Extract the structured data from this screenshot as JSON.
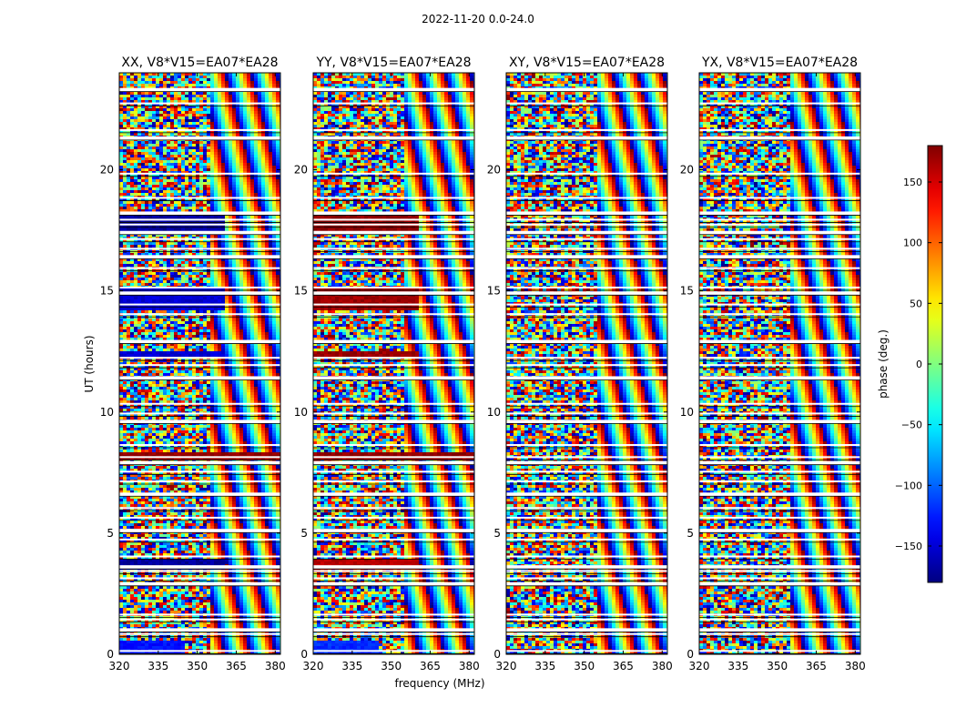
{
  "figure": {
    "suptitle": "2022-11-20 0.0-24.0"
  },
  "chart_data": {
    "type": "heatmap",
    "quantity": "visibility phase",
    "xlabel": "frequency (MHz)",
    "ylabel": "UT (hours)",
    "xlim": [
      320,
      382
    ],
    "ylim": [
      0,
      24
    ],
    "x_ticks": [
      320,
      335,
      350,
      365,
      380
    ],
    "y_ticks": [
      0,
      5,
      10,
      15,
      20
    ],
    "colorbar": {
      "label": "phase (deg.)",
      "range": [
        -180,
        180
      ],
      "ticks": [
        150,
        100,
        50,
        0,
        -50,
        -100,
        -150
      ],
      "tick_labels": [
        "150",
        "100",
        "50",
        "0",
        "−50",
        "−100",
        "−150"
      ],
      "colormap": "jet"
    },
    "panels": [
      {
        "title": "XX, V8*V15=EA07*EA28",
        "polarization": "XX"
      },
      {
        "title": "YY, V8*V15=EA07*EA28",
        "polarization": "YY"
      },
      {
        "title": "XY, V8*V15=EA07*EA28",
        "polarization": "XY"
      },
      {
        "title": "YX, V8*V15=EA07*EA28",
        "polarization": "YX"
      }
    ],
    "flagged_ut_hours": [
      23.3,
      22.7,
      21.6,
      21.3,
      19.8,
      18.8,
      18.2,
      17.9,
      17.7,
      17.4,
      17.1,
      16.7,
      16.4,
      15.9,
      15.1,
      14.9,
      14.4,
      14.0,
      12.9,
      12.2,
      11.9,
      11.4,
      10.3,
      9.9,
      9.6,
      8.6,
      8.1,
      7.9,
      7.5,
      7.1,
      6.6,
      6.0,
      5.6,
      5.1,
      4.7,
      4.0,
      3.6,
      3.4,
      3.1,
      2.9,
      1.6,
      1.4,
      1.0,
      0.8,
      0.1
    ],
    "coherent_phase_bands": [
      {
        "ut_range": [
          14.3,
          15.1
        ],
        "freq_range": [
          320,
          360
        ],
        "phase_xx": -150,
        "phase_yy": 170
      },
      {
        "ut_range": [
          12.3,
          12.6
        ],
        "freq_range": [
          320,
          360
        ],
        "phase_xx": -150,
        "phase_yy": 170
      },
      {
        "ut_range": [
          17.4,
          18.2
        ],
        "freq_range": [
          320,
          360
        ],
        "phase_xx": -170,
        "phase_yy": 175
      },
      {
        "ut_range": [
          3.5,
          4.0
        ],
        "freq_range": [
          320,
          360
        ],
        "phase_xx": -170,
        "phase_yy": 160
      },
      {
        "ut_range": [
          0.1,
          0.6
        ],
        "freq_range": [
          320,
          345
        ],
        "phase_xx": -130,
        "phase_yy": -120
      },
      {
        "ut_range": [
          8.1,
          8.4
        ],
        "freq_range": [
          320,
          382
        ],
        "phase_xx": 175,
        "phase_yy": 175
      }
    ]
  }
}
